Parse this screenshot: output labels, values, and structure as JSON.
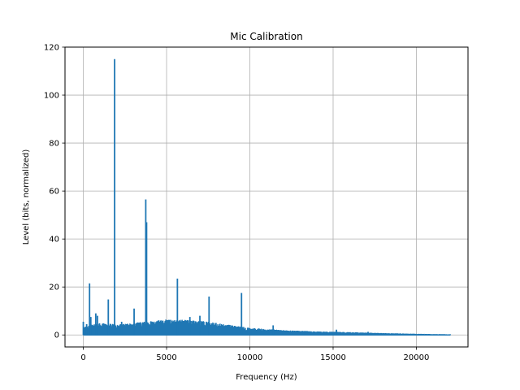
{
  "chart_data": {
    "type": "line",
    "title": "Mic Calibration",
    "xlabel": "Frequency (Hz)",
    "ylabel": "Level (bits, normalized)",
    "xlim": [
      -1100,
      23100
    ],
    "ylim": [
      -5,
      120
    ],
    "xticks": [
      0,
      5000,
      10000,
      15000,
      20000
    ],
    "yticks": [
      0,
      20,
      40,
      60,
      80,
      100,
      120
    ],
    "grid": true,
    "series": [
      {
        "color": "#1f77b4",
        "peaks": [
          {
            "x": 0,
            "y": 5.5
          },
          {
            "x": 200,
            "y": 4.5
          },
          {
            "x": 375,
            "y": 21.5
          },
          {
            "x": 450,
            "y": 7.5
          },
          {
            "x": 750,
            "y": 9
          },
          {
            "x": 850,
            "y": 8
          },
          {
            "x": 1500,
            "y": 14.8
          },
          {
            "x": 1880,
            "y": 115
          },
          {
            "x": 2300,
            "y": 5.5
          },
          {
            "x": 3050,
            "y": 11
          },
          {
            "x": 3750,
            "y": 56.5
          },
          {
            "x": 3800,
            "y": 47
          },
          {
            "x": 5650,
            "y": 23.5
          },
          {
            "x": 6400,
            "y": 7.5
          },
          {
            "x": 7000,
            "y": 8
          },
          {
            "x": 7550,
            "y": 16
          },
          {
            "x": 9500,
            "y": 17.5
          },
          {
            "x": 11400,
            "y": 4
          },
          {
            "x": 13300,
            "y": 1.6
          },
          {
            "x": 15200,
            "y": 2.2
          },
          {
            "x": 17100,
            "y": 1.3
          }
        ],
        "envelope": [
          {
            "x": 0,
            "y": 3.5
          },
          {
            "x": 1000,
            "y": 5
          },
          {
            "x": 2000,
            "y": 4.5
          },
          {
            "x": 3000,
            "y": 5
          },
          {
            "x": 4000,
            "y": 6
          },
          {
            "x": 5000,
            "y": 6.5
          },
          {
            "x": 6000,
            "y": 6.5
          },
          {
            "x": 7000,
            "y": 6
          },
          {
            "x": 8000,
            "y": 5
          },
          {
            "x": 9000,
            "y": 4
          },
          {
            "x": 10000,
            "y": 3
          },
          {
            "x": 12000,
            "y": 2
          },
          {
            "x": 14000,
            "y": 1.5
          },
          {
            "x": 16000,
            "y": 1.2
          },
          {
            "x": 18000,
            "y": 0.8
          },
          {
            "x": 20000,
            "y": 0.5
          },
          {
            "x": 22000,
            "y": 0.3
          }
        ],
        "x_end": 22050
      }
    ]
  }
}
